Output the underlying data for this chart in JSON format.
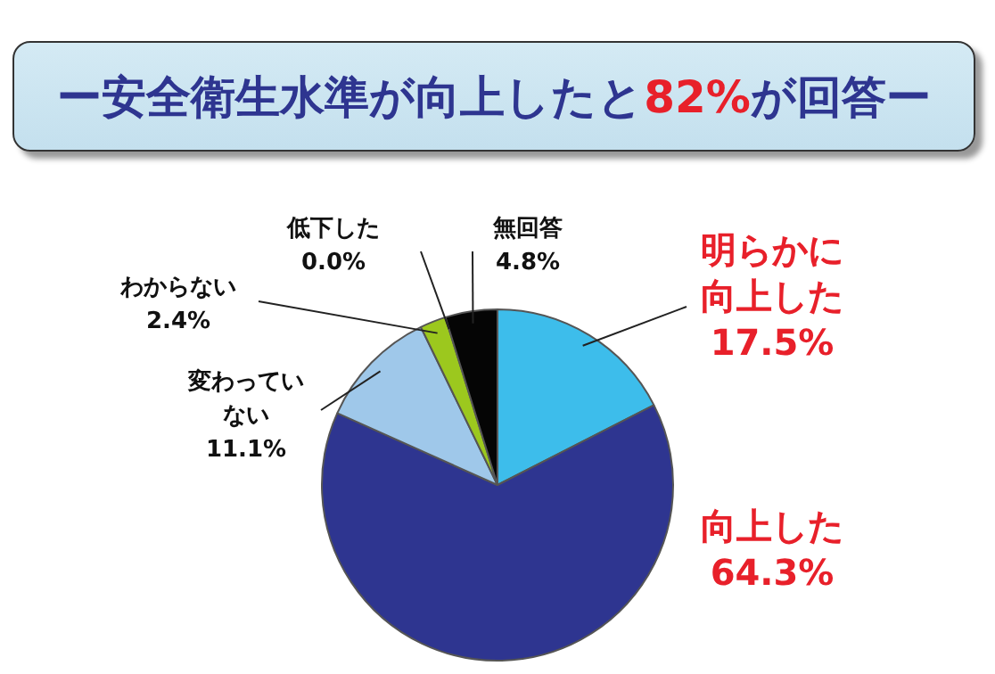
{
  "chart_data": {
    "type": "pie",
    "title": "ー安全衛生水準が向上したと82%が回答ー",
    "categories": [
      "明らかに向上した",
      "向上した",
      "変わっていない",
      "わからない",
      "低下した",
      "無回答"
    ],
    "values": [
      17.5,
      64.3,
      11.1,
      2.4,
      0.0,
      4.8
    ],
    "value_labels": [
      "17.5%",
      "64.3%",
      "11.1%",
      "2.4%",
      "0.0%",
      "4.8%"
    ],
    "colors": [
      "#3dbdeb",
      "#2e3590",
      "#9fc8ea",
      "#9cc81e",
      "#6e8a20",
      "#050505"
    ],
    "legend": false
  }
}
